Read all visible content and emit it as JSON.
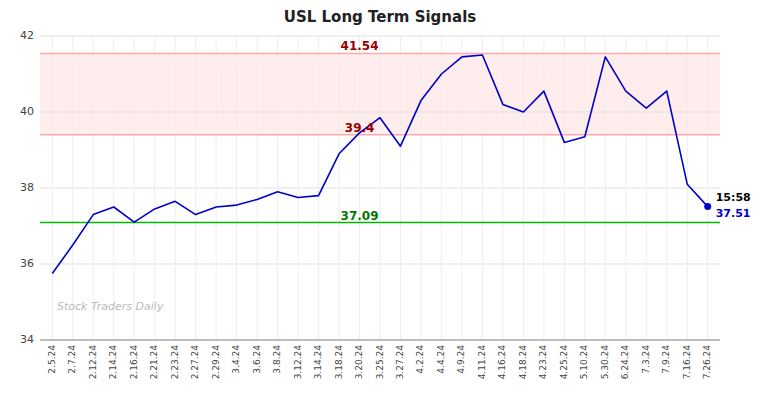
{
  "chart_data": {
    "type": "line",
    "title": "USL Long Term Signals",
    "categories": [
      "2.5.24",
      "2.7.24",
      "2.12.24",
      "2.14.24",
      "2.16.24",
      "2.21.24",
      "2.23.24",
      "2.27.24",
      "2.29.24",
      "3.4.24",
      "3.6.24",
      "3.8.24",
      "3.12.24",
      "3.14.24",
      "3.18.24",
      "3.20.24",
      "3.25.24",
      "3.27.24",
      "4.2.24",
      "4.4.24",
      "4.9.24",
      "4.11.24",
      "4.16.24",
      "4.18.24",
      "4.23.24",
      "4.25.24",
      "5.10.24",
      "5.30.24",
      "6.24.24",
      "7.3.24",
      "7.9.24",
      "7.16.24",
      "7.26.24"
    ],
    "values": [
      35.75,
      36.5,
      37.3,
      37.5,
      37.1,
      37.45,
      37.65,
      37.3,
      37.5,
      37.55,
      37.7,
      37.9,
      37.75,
      37.8,
      38.9,
      39.45,
      39.85,
      39.1,
      40.3,
      41.0,
      41.45,
      41.5,
      40.2,
      40.0,
      40.55,
      39.2,
      39.35,
      41.45,
      40.55,
      40.1,
      40.55,
      38.1,
      37.51
    ],
    "color": "#0000cc",
    "ylim": [
      34,
      42
    ],
    "yticks": [
      34,
      36,
      38,
      40,
      42
    ],
    "grid": true,
    "reference_lines": [
      {
        "value": 41.54,
        "label": "41.54",
        "color": "#ffaaaa",
        "label_color": "#990000"
      },
      {
        "value": 39.4,
        "label": "39.4",
        "color": "#ffaaaa",
        "label_color": "#990000"
      },
      {
        "value": 37.09,
        "label": "37.09",
        "color": "#00bb00",
        "label_color": "#007700"
      }
    ],
    "band": {
      "from": 39.4,
      "to": 41.54,
      "color": "#ffdddd"
    },
    "annotations": [
      {
        "text": "15:58",
        "color": "#000000"
      },
      {
        "text": "37.51",
        "color": "#0000cc"
      }
    ],
    "watermark": {
      "text": "Stock Traders Daily",
      "color": "#bbbbbb"
    }
  }
}
